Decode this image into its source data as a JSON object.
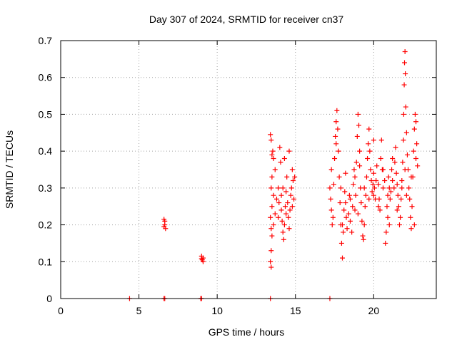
{
  "chart_data": {
    "type": "scatter",
    "title": "Day 307 of 2024, SRMTID for receiver cn37",
    "xlabel": "GPS time / hours",
    "ylabel": "SRMTID / TECUs",
    "xlim": [
      0,
      24
    ],
    "ylim": [
      0,
      0.7
    ],
    "xticks": [
      0,
      5,
      10,
      15,
      20
    ],
    "yticks": [
      0,
      0.1,
      0.2,
      0.3,
      0.4,
      0.5,
      0.6,
      0.7
    ],
    "grid": true,
    "marker": "+",
    "color": "#ff0000",
    "series": [
      {
        "name": "SRMTID",
        "points": [
          [
            4.4,
            0
          ],
          [
            6.6,
            0
          ],
          [
            6.65,
            0
          ],
          [
            8.95,
            0
          ],
          [
            9.0,
            0
          ],
          [
            13.4,
            0
          ],
          [
            17.2,
            0
          ],
          [
            6.6,
            0.215
          ],
          [
            6.65,
            0.21
          ],
          [
            6.6,
            0.195
          ],
          [
            6.7,
            0.19
          ],
          [
            6.65,
            0.2
          ],
          [
            9.0,
            0.115
          ],
          [
            9.1,
            0.11
          ],
          [
            9.05,
            0.105
          ],
          [
            9.1,
            0.1
          ],
          [
            9.0,
            0.108
          ],
          [
            13.4,
            0.445
          ],
          [
            13.45,
            0.43
          ],
          [
            13.5,
            0.39
          ],
          [
            13.55,
            0.4
          ],
          [
            13.6,
            0.38
          ],
          [
            13.7,
            0.35
          ],
          [
            13.5,
            0.33
          ],
          [
            13.45,
            0.3
          ],
          [
            13.6,
            0.28
          ],
          [
            13.5,
            0.25
          ],
          [
            13.4,
            0.22
          ],
          [
            13.45,
            0.19
          ],
          [
            13.5,
            0.17
          ],
          [
            13.45,
            0.13
          ],
          [
            13.4,
            0.1
          ],
          [
            13.45,
            0.085
          ],
          [
            13.6,
            0.2
          ],
          [
            13.7,
            0.23
          ],
          [
            13.8,
            0.27
          ],
          [
            13.9,
            0.3
          ],
          [
            13.95,
            0.26
          ],
          [
            14.0,
            0.41
          ],
          [
            14.05,
            0.37
          ],
          [
            14.1,
            0.24
          ],
          [
            14.15,
            0.21
          ],
          [
            14.2,
            0.18
          ],
          [
            14.25,
            0.16
          ],
          [
            14.3,
            0.2
          ],
          [
            14.35,
            0.25
          ],
          [
            14.4,
            0.29
          ],
          [
            14.45,
            0.33
          ],
          [
            14.5,
            0.26
          ],
          [
            14.55,
            0.22
          ],
          [
            14.6,
            0.19
          ],
          [
            14.65,
            0.24
          ],
          [
            14.7,
            0.28
          ],
          [
            14.75,
            0.3
          ],
          [
            14.8,
            0.35
          ],
          [
            14.85,
            0.32
          ],
          [
            14.9,
            0.27
          ],
          [
            14.95,
            0.33
          ],
          [
            14.6,
            0.4
          ],
          [
            14.3,
            0.38
          ],
          [
            14.1,
            0.28
          ],
          [
            14.4,
            0.23
          ],
          [
            14.2,
            0.3
          ],
          [
            13.9,
            0.22
          ],
          [
            14.8,
            0.25
          ],
          [
            17.2,
            0.3
          ],
          [
            17.25,
            0.27
          ],
          [
            17.3,
            0.24
          ],
          [
            17.35,
            0.2
          ],
          [
            17.4,
            0.22
          ],
          [
            17.45,
            0.31
          ],
          [
            17.5,
            0.38
          ],
          [
            17.55,
            0.44
          ],
          [
            17.6,
            0.48
          ],
          [
            17.65,
            0.51
          ],
          [
            17.7,
            0.46
          ],
          [
            17.75,
            0.4
          ],
          [
            17.8,
            0.33
          ],
          [
            17.85,
            0.26
          ],
          [
            17.9,
            0.2
          ],
          [
            17.95,
            0.15
          ],
          [
            18.0,
            0.11
          ],
          [
            18.05,
            0.18
          ],
          [
            18.1,
            0.24
          ],
          [
            18.15,
            0.29
          ],
          [
            18.2,
            0.26
          ],
          [
            18.25,
            0.22
          ],
          [
            18.3,
            0.19
          ],
          [
            18.4,
            0.23
          ],
          [
            18.45,
            0.28
          ],
          [
            18.5,
            0.21
          ],
          [
            18.6,
            0.18
          ],
          [
            18.65,
            0.25
          ],
          [
            18.7,
            0.31
          ],
          [
            18.75,
            0.35
          ],
          [
            18.8,
            0.33
          ],
          [
            18.85,
            0.28
          ],
          [
            18.9,
            0.37
          ],
          [
            18.95,
            0.44
          ],
          [
            19.0,
            0.5
          ],
          [
            19.05,
            0.47
          ],
          [
            19.1,
            0.4
          ],
          [
            19.15,
            0.3
          ],
          [
            19.2,
            0.26
          ],
          [
            19.25,
            0.21
          ],
          [
            19.3,
            0.17
          ],
          [
            19.35,
            0.16
          ],
          [
            19.4,
            0.2
          ],
          [
            19.45,
            0.25
          ],
          [
            19.5,
            0.28
          ],
          [
            19.55,
            0.33
          ],
          [
            19.6,
            0.38
          ],
          [
            19.65,
            0.42
          ],
          [
            19.7,
            0.46
          ],
          [
            19.75,
            0.4
          ],
          [
            19.8,
            0.35
          ],
          [
            19.85,
            0.32
          ],
          [
            19.9,
            0.29
          ],
          [
            19.95,
            0.31
          ],
          [
            20.0,
            0.34
          ],
          [
            20.05,
            0.3
          ],
          [
            20.1,
            0.27
          ],
          [
            20.15,
            0.32
          ],
          [
            20.2,
            0.36
          ],
          [
            20.3,
            0.31
          ],
          [
            20.35,
            0.27
          ],
          [
            20.4,
            0.24
          ],
          [
            20.45,
            0.38
          ],
          [
            20.5,
            0.43
          ],
          [
            20.55,
            0.35
          ],
          [
            20.6,
            0.3
          ],
          [
            20.7,
            0.32
          ],
          [
            20.75,
            0.15
          ],
          [
            20.8,
            0.18
          ],
          [
            20.85,
            0.25
          ],
          [
            20.9,
            0.28
          ],
          [
            20.95,
            0.33
          ],
          [
            21.0,
            0.3
          ],
          [
            21.05,
            0.27
          ],
          [
            21.1,
            0.29
          ],
          [
            21.15,
            0.35
          ],
          [
            21.2,
            0.32
          ],
          [
            21.3,
            0.3
          ],
          [
            21.35,
            0.37
          ],
          [
            21.4,
            0.41
          ],
          [
            21.45,
            0.34
          ],
          [
            21.5,
            0.31
          ],
          [
            21.55,
            0.28
          ],
          [
            21.6,
            0.25
          ],
          [
            21.65,
            0.2
          ],
          [
            21.7,
            0.22
          ],
          [
            21.75,
            0.27
          ],
          [
            21.8,
            0.32
          ],
          [
            21.85,
            0.37
          ],
          [
            21.9,
            0.43
          ],
          [
            21.92,
            0.5
          ],
          [
            21.95,
            0.58
          ],
          [
            21.97,
            0.64
          ],
          [
            22.0,
            0.67
          ],
          [
            22.02,
            0.61
          ],
          [
            22.05,
            0.52
          ],
          [
            22.1,
            0.45
          ],
          [
            22.15,
            0.39
          ],
          [
            22.2,
            0.35
          ],
          [
            22.25,
            0.3
          ],
          [
            22.3,
            0.27
          ],
          [
            22.35,
            0.22
          ],
          [
            22.4,
            0.19
          ],
          [
            22.45,
            0.25
          ],
          [
            22.5,
            0.33
          ],
          [
            22.55,
            0.4
          ],
          [
            22.6,
            0.46
          ],
          [
            22.65,
            0.5
          ],
          [
            22.7,
            0.48
          ],
          [
            22.75,
            0.42
          ],
          [
            22.8,
            0.36
          ],
          [
            17.3,
            0.35
          ],
          [
            17.6,
            0.42
          ],
          [
            17.9,
            0.3
          ],
          [
            18.2,
            0.34
          ],
          [
            18.5,
            0.27
          ],
          [
            18.8,
            0.24
          ],
          [
            19.1,
            0.36
          ],
          [
            19.4,
            0.3
          ],
          [
            19.7,
            0.27
          ],
          [
            20.0,
            0.28
          ],
          [
            20.3,
            0.25
          ],
          [
            20.6,
            0.35
          ],
          [
            20.9,
            0.22
          ],
          [
            21.2,
            0.38
          ],
          [
            21.5,
            0.24
          ],
          [
            21.8,
            0.3
          ],
          [
            22.1,
            0.28
          ],
          [
            22.4,
            0.33
          ],
          [
            22.7,
            0.38
          ],
          [
            18.0,
            0.2
          ],
          [
            19.0,
            0.23
          ],
          [
            20.0,
            0.43
          ],
          [
            21.0,
            0.2
          ],
          [
            22.0,
            0.35
          ],
          [
            22.6,
            0.2
          ]
        ]
      }
    ]
  }
}
